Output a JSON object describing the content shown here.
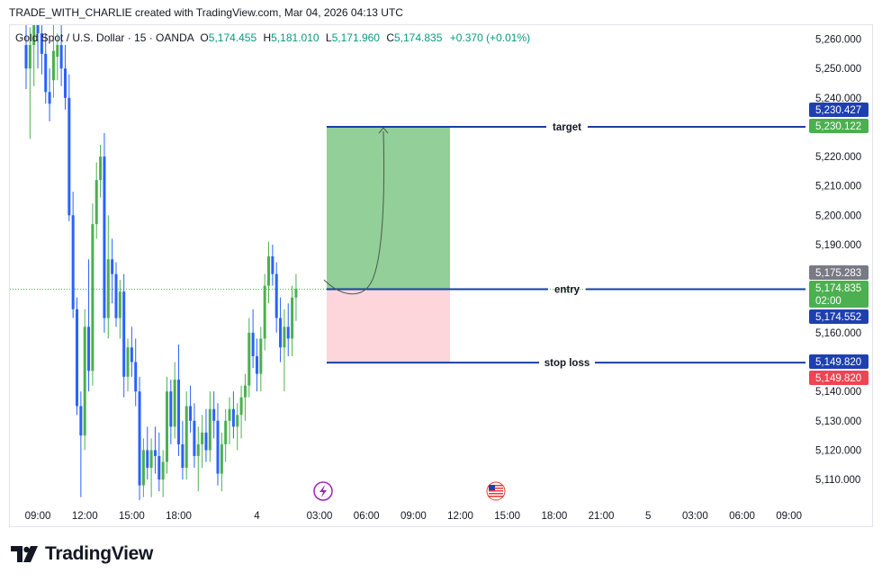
{
  "caption": "TRADE_WITH_CHARLIE created with TradingView.com, Mar 04, 2026 04:13 UTC",
  "legend": {
    "symbol": "Gold Spot / U.S. Dollar · 15 · OANDA",
    "o_label": "O",
    "o": "5,174.455",
    "h_label": "H",
    "h": "5,181.010",
    "l_label": "L",
    "l": "5,171.960",
    "c_label": "C",
    "c": "5,174.835",
    "change": "+0.370 (+0.01%)"
  },
  "brand": "TradingView",
  "colors": {
    "up": "#4caf50",
    "down": "#2962ff",
    "target_zone": "#93cf98",
    "stop_zone": "#fcd6da",
    "level_line": "#1a3fa0"
  },
  "chart_data": {
    "type": "candlestick",
    "y_ticks": [
      {
        "v": 5260,
        "label": "5,260.000"
      },
      {
        "v": 5250,
        "label": "5,250.000"
      },
      {
        "v": 5240,
        "label": "5,240.000"
      },
      {
        "v": 5220,
        "label": "5,220.000"
      },
      {
        "v": 5210,
        "label": "5,210.000"
      },
      {
        "v": 5200,
        "label": "5,200.000"
      },
      {
        "v": 5190,
        "label": "5,190.000"
      },
      {
        "v": 5160,
        "label": "5,160.000"
      },
      {
        "v": 5140,
        "label": "5,140.000"
      },
      {
        "v": 5130,
        "label": "5,130.000"
      },
      {
        "v": 5120,
        "label": "5,120.000"
      },
      {
        "v": 5110,
        "label": "5,110.000"
      }
    ],
    "x_ticks": [
      {
        "i": 3,
        "label": "09:00"
      },
      {
        "i": 15,
        "label": "12:00"
      },
      {
        "i": 27,
        "label": "15:00"
      },
      {
        "i": 39,
        "label": "18:00"
      },
      {
        "i": 59,
        "label": "4"
      },
      {
        "i": 75,
        "label": "03:00"
      },
      {
        "i": 87,
        "label": "06:00"
      },
      {
        "i": 99,
        "label": "09:00"
      },
      {
        "i": 111,
        "label": "12:00"
      },
      {
        "i": 123,
        "label": "15:00"
      },
      {
        "i": 135,
        "label": "18:00"
      },
      {
        "i": 147,
        "label": "21:00"
      },
      {
        "i": 159,
        "label": "5"
      },
      {
        "i": 171,
        "label": "03:00"
      },
      {
        "i": 183,
        "label": "06:00"
      },
      {
        "i": 195,
        "label": "09:00"
      }
    ],
    "candles": [
      [
        5258,
        5266,
        5243,
        5250
      ],
      [
        5250,
        5264,
        5226,
        5258
      ],
      [
        5258,
        5270,
        5244,
        5266
      ],
      [
        5266,
        5270,
        5250,
        5262
      ],
      [
        5262,
        5270,
        5248,
        5255
      ],
      [
        5255,
        5262,
        5238,
        5242
      ],
      [
        5242,
        5250,
        5232,
        5238
      ],
      [
        5246,
        5266,
        5240,
        5256
      ],
      [
        5254,
        5262,
        5246,
        5258
      ],
      [
        5258,
        5266,
        5244,
        5250
      ],
      [
        5250,
        5258,
        5236,
        5240
      ],
      [
        5240,
        5248,
        5198,
        5200
      ],
      [
        5200,
        5208,
        5165,
        5168
      ],
      [
        5168,
        5172,
        5132,
        5135
      ],
      [
        5135,
        5140,
        5104,
        5125
      ],
      [
        5125,
        5168,
        5120,
        5162
      ],
      [
        5162,
        5185,
        5140,
        5147
      ],
      [
        5147,
        5204,
        5142,
        5197
      ],
      [
        5197,
        5218,
        5192,
        5212
      ],
      [
        5212,
        5224,
        5206,
        5220
      ],
      [
        5220,
        5228,
        5160,
        5165
      ],
      [
        5165,
        5200,
        5158,
        5185
      ],
      [
        5185,
        5192,
        5170,
        5180
      ],
      [
        5180,
        5184,
        5162,
        5165
      ],
      [
        5165,
        5178,
        5158,
        5174
      ],
      [
        5174,
        5180,
        5138,
        5145
      ],
      [
        5145,
        5158,
        5140,
        5155
      ],
      [
        5155,
        5162,
        5145,
        5150
      ],
      [
        5150,
        5158,
        5135,
        5140
      ],
      [
        5140,
        5145,
        5103,
        5108
      ],
      [
        5108,
        5124,
        5104,
        5120
      ],
      [
        5120,
        5128,
        5110,
        5114
      ],
      [
        5114,
        5124,
        5104,
        5120
      ],
      [
        5120,
        5128,
        5112,
        5118
      ],
      [
        5118,
        5126,
        5106,
        5110
      ],
      [
        5110,
        5120,
        5104,
        5116
      ],
      [
        5116,
        5145,
        5112,
        5140
      ],
      [
        5140,
        5144,
        5122,
        5128
      ],
      [
        5128,
        5150,
        5124,
        5144
      ],
      [
        5144,
        5156,
        5118,
        5122
      ],
      [
        5122,
        5130,
        5110,
        5114
      ],
      [
        5114,
        5140,
        5110,
        5135
      ],
      [
        5135,
        5142,
        5126,
        5130
      ],
      [
        5130,
        5136,
        5114,
        5118
      ],
      [
        5118,
        5128,
        5106,
        5122
      ],
      [
        5122,
        5132,
        5114,
        5126
      ],
      [
        5126,
        5134,
        5116,
        5120
      ],
      [
        5120,
        5140,
        5116,
        5134
      ],
      [
        5134,
        5140,
        5124,
        5130
      ],
      [
        5130,
        5136,
        5108,
        5112
      ],
      [
        5112,
        5126,
        5106,
        5122
      ],
      [
        5122,
        5134,
        5116,
        5130
      ],
      [
        5130,
        5138,
        5122,
        5134
      ],
      [
        5134,
        5140,
        5124,
        5128
      ],
      [
        5128,
        5136,
        5120,
        5132
      ],
      [
        5132,
        5142,
        5124,
        5138
      ],
      [
        5138,
        5146,
        5130,
        5142
      ],
      [
        5142,
        5165,
        5138,
        5160
      ],
      [
        5160,
        5168,
        5148,
        5152
      ],
      [
        5152,
        5158,
        5140,
        5146
      ],
      [
        5146,
        5162,
        5140,
        5158
      ],
      [
        5158,
        5180,
        5154,
        5176
      ],
      [
        5176,
        5191,
        5170,
        5186
      ],
      [
        5186,
        5190,
        5176,
        5180
      ],
      [
        5180,
        5184,
        5160,
        5165
      ],
      [
        5165,
        5172,
        5150,
        5155
      ],
      [
        5155,
        5168,
        5140,
        5162
      ],
      [
        5162,
        5170,
        5152,
        5158
      ],
      [
        5158,
        5176,
        5152,
        5172
      ],
      [
        5172,
        5180,
        5164,
        5175
      ]
    ],
    "position": {
      "target": 5230.122,
      "entry": 5174.835,
      "stop": 5149.82,
      "target_label": "target",
      "entry_label": "entry",
      "stop_label": "stop loss"
    },
    "price_badges": [
      {
        "v": 5230.427,
        "label": "5,230.427",
        "bg": "#1e40af"
      },
      {
        "v": 5230.122,
        "label": "5,230.122",
        "bg": "#4caf50"
      },
      {
        "v": 5175.283,
        "label": "5,175.283",
        "bg": "#787b86"
      },
      {
        "v": 5174.835,
        "label": "5,174.835",
        "sub": "02:00",
        "bg": "#4caf50"
      },
      {
        "v": 5174.552,
        "label": "5,174.552",
        "bg": "#1e40af"
      },
      {
        "v": 5149.82,
        "label": "5,149.820",
        "bg": "#1e40af"
      },
      {
        "v": 5149.82,
        "label": "5,149.820",
        "bg": "#ef4452"
      }
    ]
  }
}
